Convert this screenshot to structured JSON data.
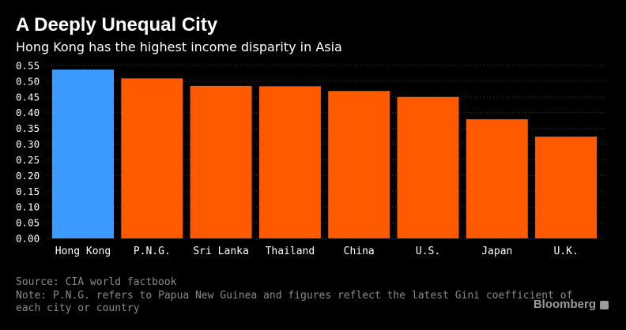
{
  "header": {
    "title": "A Deeply Unequal City",
    "subtitle": "Hong Kong has the highest income disparity in Asia"
  },
  "footer": {
    "source": "Source: CIA world factbook",
    "note_line1": "Note: P.N.G. refers to Papua New Guinea and figures reflect the latest Gini coefficient of",
    "note_line2": "each city or country",
    "brand": "Bloomberg"
  },
  "colors": {
    "background": "#000000",
    "highlight": "#3d9bff",
    "bar": "#ff5a00",
    "grid": "#444444",
    "tick_text": "#ffffff"
  },
  "chart_data": {
    "type": "bar",
    "title": "A Deeply Unequal City",
    "subtitle": "Hong Kong has the highest income disparity in Asia",
    "xlabel": "",
    "ylabel": "",
    "categories": [
      "Hong Kong",
      "P.N.G.",
      "Sri Lanka",
      "Thailand",
      "China",
      "U.S.",
      "Japan",
      "U.K."
    ],
    "values": [
      0.537,
      0.509,
      0.485,
      0.484,
      0.469,
      0.45,
      0.379,
      0.324
    ],
    "highlight": [
      "Hong Kong"
    ],
    "ylim": [
      0,
      0.55
    ],
    "yticks": [
      "0.00",
      "0.05",
      "0.10",
      "0.15",
      "0.20",
      "0.25",
      "0.30",
      "0.35",
      "0.40",
      "0.45",
      "0.50",
      "0.55"
    ],
    "grid": true,
    "legend": "none"
  }
}
